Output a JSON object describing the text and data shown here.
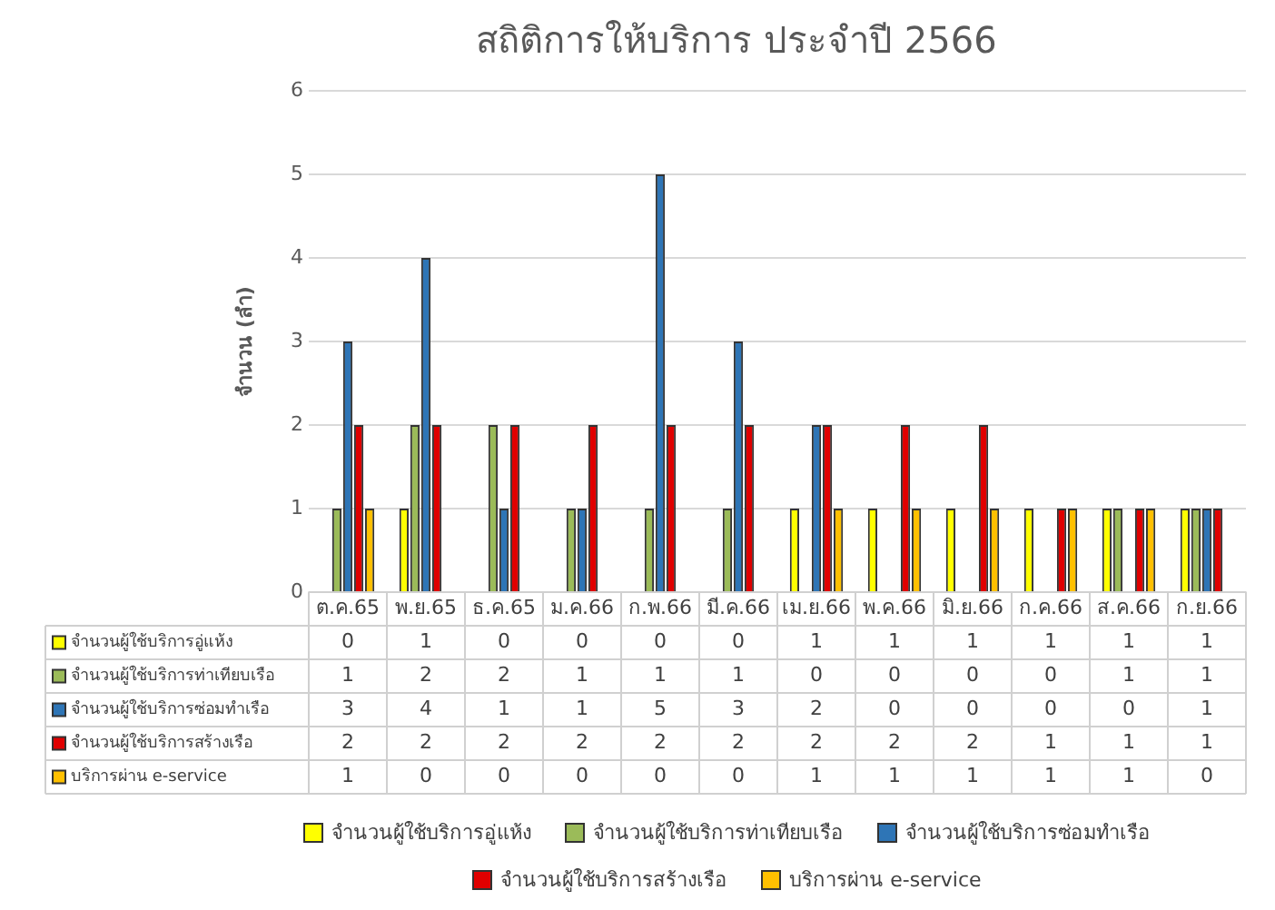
{
  "chart_data": {
    "type": "bar",
    "title": "สถิติการให้บริการ ประจำปี 2566",
    "ylabel": "จำนวน (ลำ)",
    "categories": [
      "ต.ค.65",
      "พ.ย.65",
      "ธ.ค.65",
      "ม.ค.66",
      "ก.พ.66",
      "มี.ค.66",
      "เม.ย.66",
      "พ.ค.66",
      "มิ.ย.66",
      "ก.ค.66",
      "ส.ค.66",
      "ก.ย.66"
    ],
    "series": [
      {
        "name": "จำนวนผู้ใช้บริการอู่แห้ง",
        "color": "#ffff00",
        "values": [
          0,
          1,
          0,
          0,
          0,
          0,
          1,
          1,
          1,
          1,
          1,
          1
        ]
      },
      {
        "name": "จำนวนผู้ใช้บริการท่าเทียบเรือ",
        "color": "#9bbb59",
        "values": [
          1,
          2,
          2,
          1,
          1,
          1,
          0,
          0,
          0,
          0,
          1,
          1
        ]
      },
      {
        "name": "จำนวนผู้ใช้บริการซ่อมทำเรือ",
        "color": "#2e75b6",
        "values": [
          3,
          4,
          1,
          1,
          5,
          3,
          2,
          0,
          0,
          0,
          0,
          1
        ]
      },
      {
        "name": "จำนวนผู้ใช้บริการสร้างเรือ",
        "color": "#e00000",
        "values": [
          2,
          2,
          2,
          2,
          2,
          2,
          2,
          2,
          2,
          1,
          1,
          1
        ]
      },
      {
        "name": "บริการผ่าน e-service",
        "color": "#ffc000",
        "values": [
          1,
          0,
          0,
          0,
          0,
          0,
          1,
          1,
          1,
          1,
          1,
          0
        ]
      }
    ],
    "ylim": [
      0,
      6
    ],
    "yticks": [
      0,
      1,
      2,
      3,
      4,
      5,
      6
    ],
    "grid": "y",
    "legend": "bottom",
    "data_labels": true
  }
}
